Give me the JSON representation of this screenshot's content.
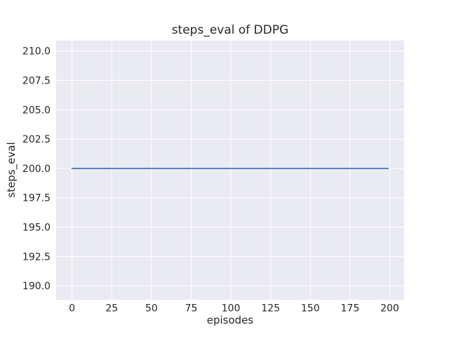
{
  "chart_data": {
    "type": "line",
    "title": "steps_eval of DDPG",
    "xlabel": "episodes",
    "ylabel": "steps_eval",
    "x": [
      0,
      199
    ],
    "series": [
      {
        "name": "steps_eval",
        "values": [
          200,
          200
        ]
      }
    ],
    "xlim": [
      -10,
      209
    ],
    "ylim": [
      188.8,
      210.9
    ],
    "xticks": [
      0,
      25,
      50,
      75,
      100,
      125,
      150,
      175,
      200
    ],
    "yticks": [
      190.0,
      192.5,
      195.0,
      197.5,
      200.0,
      202.5,
      205.0,
      207.5,
      210.0
    ],
    "grid": true,
    "legend": "none",
    "line_color": "#4c72b0",
    "plot_bg": "#eaeaf2",
    "fig_bg": "#ffffff",
    "grid_color": "#ffffff",
    "text_color": "#262626"
  }
}
